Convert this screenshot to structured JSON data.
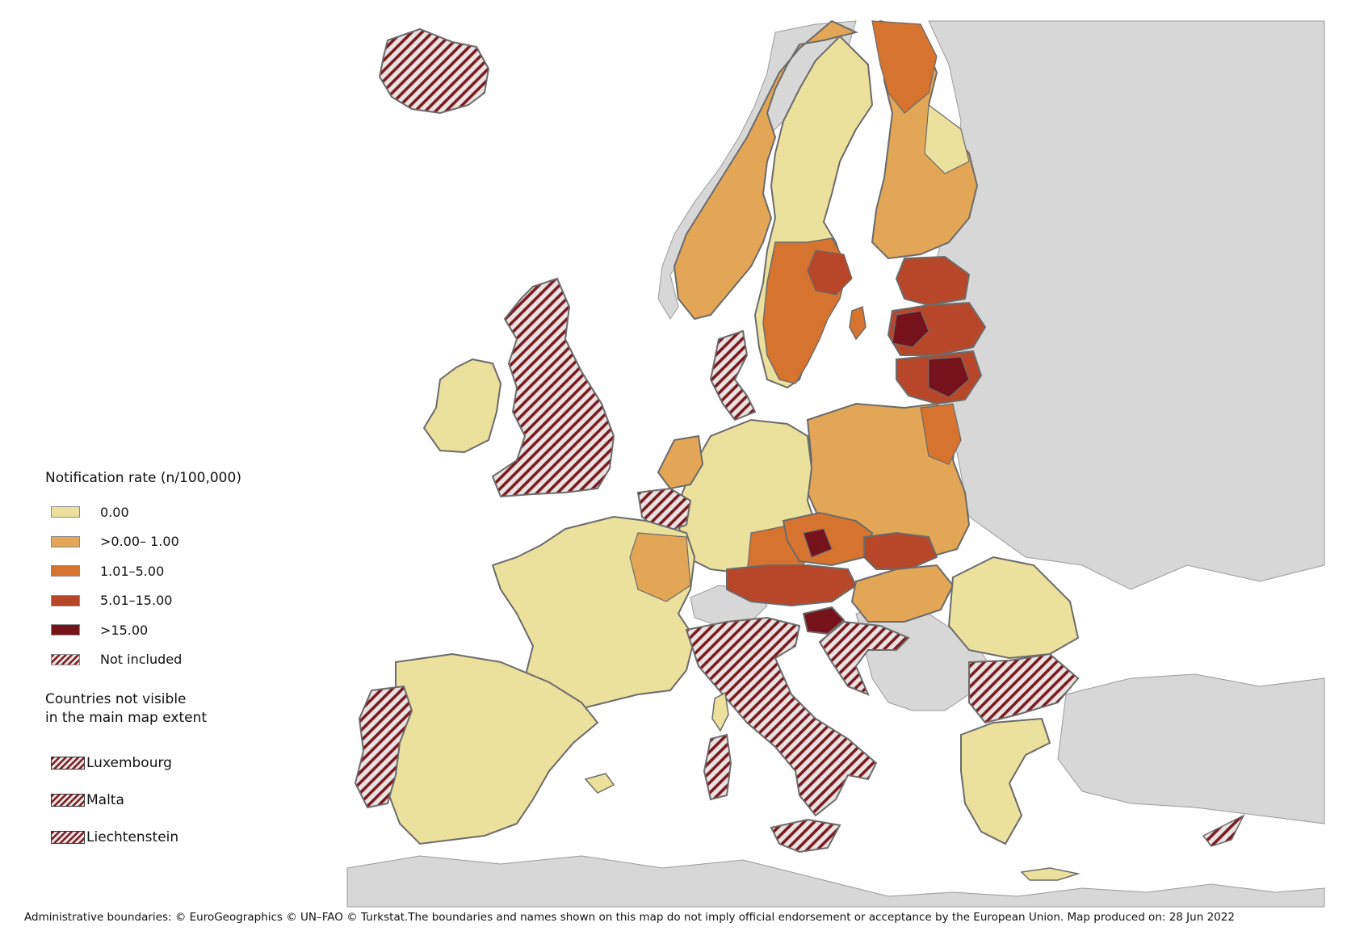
{
  "colors": {
    "sea": "#ffffff",
    "outside": "#d7d7d7",
    "border": "#6b6b6b",
    "c0": "#ebe19c",
    "c1": "#e3a657",
    "c2": "#d5732f",
    "c3": "#b8472a",
    "c4": "#76121a",
    "hatch": "#7a1c22"
  },
  "legend": {
    "title": "Notification rate (n/100,000)",
    "classes": [
      {
        "label": "0.00",
        "color": "#ebe19c"
      },
      {
        "label": ">0.00– 1.00",
        "color": "#e3a657"
      },
      {
        "label": "1.01–5.00",
        "color": "#d5732f"
      },
      {
        "label": "5.01–15.00",
        "color": "#b8472a"
      },
      {
        "label": ">15.00",
        "color": "#76121a"
      }
    ],
    "not_included": "Not included"
  },
  "not_visible": {
    "title_line1": "Countries not visible",
    "title_line2": "in the main map extent",
    "countries": [
      "Luxembourg",
      "Malta",
      "Liechtenstein"
    ]
  },
  "footer": "Administrative boundaries: © EuroGeographics © UN–FAO © Turkstat.The boundaries and names shown on this map do not imply official endorsement or acceptance by the European Union. Map produced on: 28 Jun 2022"
}
